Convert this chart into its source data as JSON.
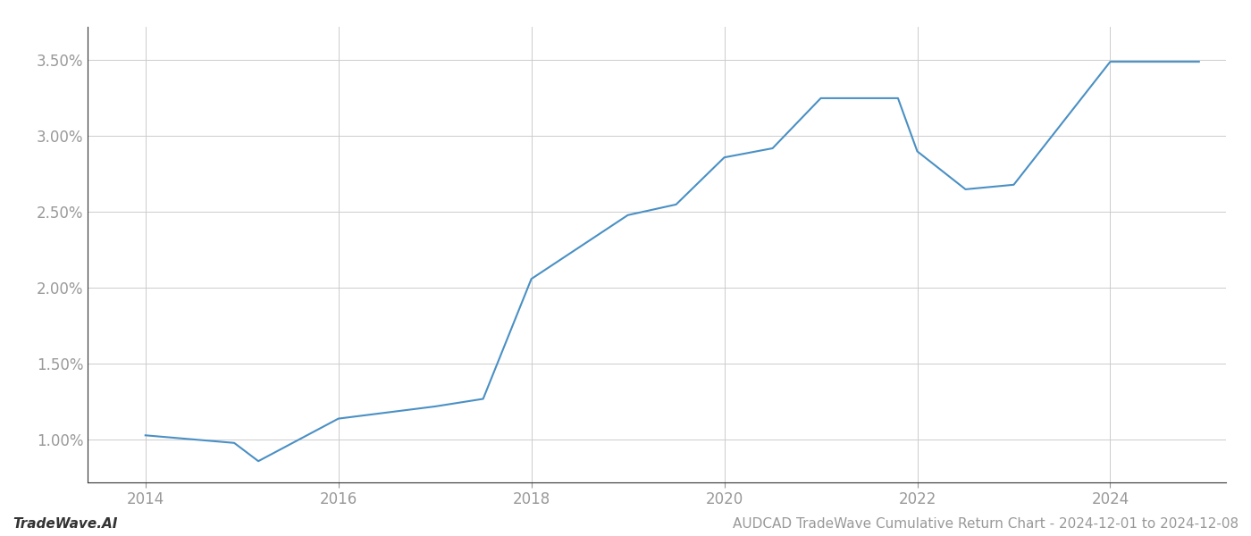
{
  "x_values": [
    2014,
    2014.92,
    2015.17,
    2016,
    2016.5,
    2017.0,
    2017.5,
    2018.0,
    2019.0,
    2019.5,
    2020.0,
    2020.5,
    2021.0,
    2021.4,
    2021.8,
    2022.0,
    2022.5,
    2023.0,
    2024.0,
    2024.92
  ],
  "y_values": [
    1.03,
    0.98,
    0.86,
    1.14,
    1.18,
    1.22,
    1.27,
    2.06,
    2.48,
    2.55,
    2.86,
    2.92,
    3.25,
    3.25,
    3.25,
    2.9,
    2.65,
    2.68,
    3.49,
    3.49
  ],
  "line_color": "#4a90c4",
  "line_width": 1.5,
  "xlim": [
    2013.4,
    2025.2
  ],
  "ylim": [
    0.72,
    3.72
  ],
  "yticks": [
    1.0,
    1.5,
    2.0,
    2.5,
    3.0,
    3.5
  ],
  "ytick_labels": [
    "1.00%",
    "1.50%",
    "2.00%",
    "2.50%",
    "3.00%",
    "3.50%"
  ],
  "xticks": [
    2014,
    2016,
    2018,
    2020,
    2022,
    2024
  ],
  "xtick_labels": [
    "2014",
    "2016",
    "2018",
    "2020",
    "2022",
    "2024"
  ],
  "grid_color": "#cccccc",
  "grid_linewidth": 0.7,
  "background_color": "#ffffff",
  "footer_left": "TradeWave.AI",
  "footer_right": "AUDCAD TradeWave Cumulative Return Chart - 2024-12-01 to 2024-12-08",
  "tick_color": "#999999",
  "tick_fontsize": 12,
  "footer_fontsize": 11,
  "left_spine_color": "#333333",
  "bottom_spine_color": "#cccccc"
}
